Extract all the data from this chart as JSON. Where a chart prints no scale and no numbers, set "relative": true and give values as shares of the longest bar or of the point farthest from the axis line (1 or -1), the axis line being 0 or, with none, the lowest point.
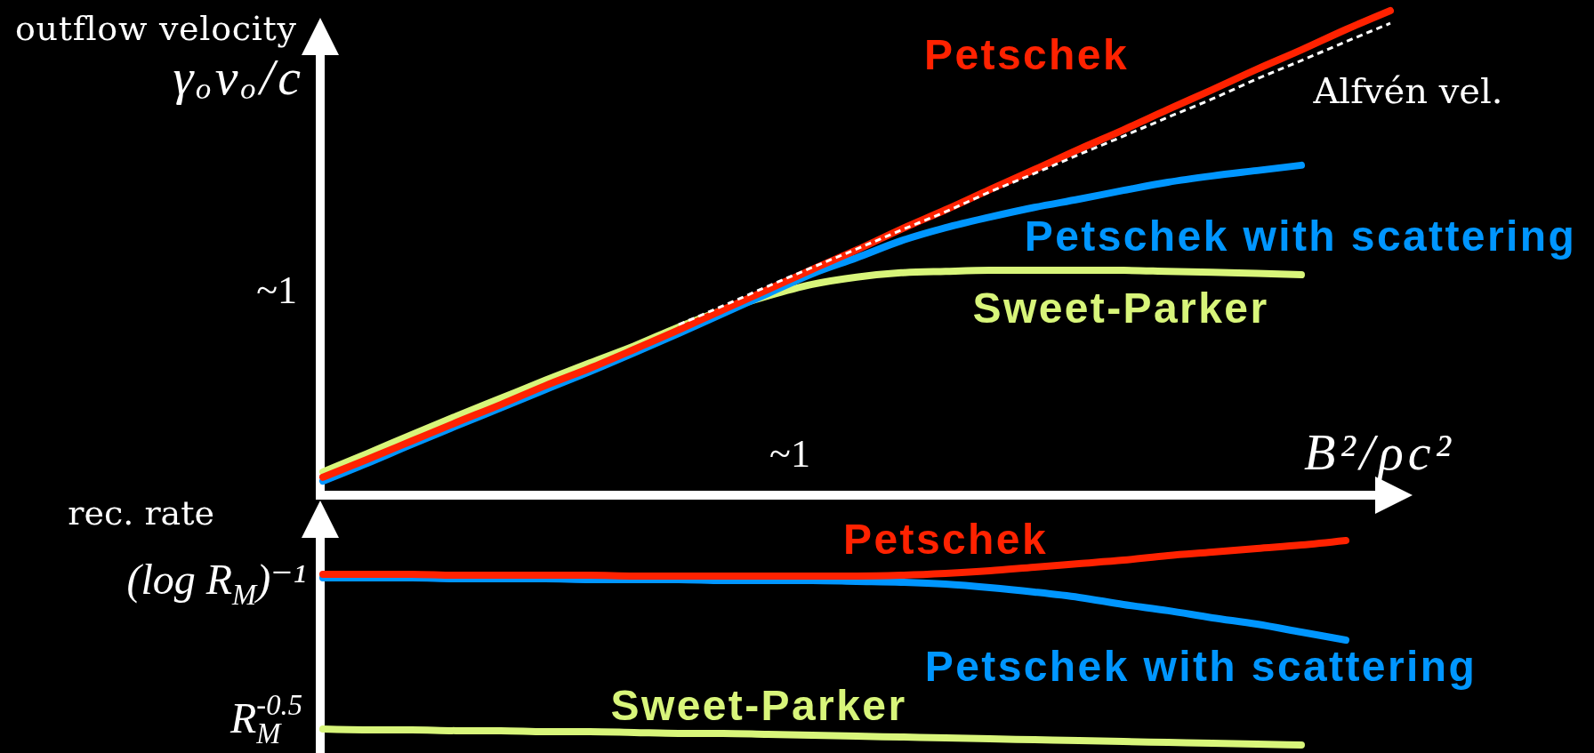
{
  "chart_data": [
    {
      "type": "line",
      "relative": true,
      "ylabel": "outflow velocity\nγₒvₒ/c",
      "xlabel": "B²/ρc²",
      "categories": [
        null,
        null,
        null,
        null,
        null,
        null,
        null,
        null,
        null,
        null,
        null,
        null,
        null,
        null,
        null,
        null,
        null,
        null,
        null,
        null,
        null,
        null,
        null,
        null,
        null
      ],
      "series": [
        {
          "name": "Sweet-Parker",
          "color": "#d8f57a",
          "values": [
            0.048,
            0.086,
            0.125,
            0.163,
            0.2,
            0.237,
            0.273,
            0.308,
            0.347,
            0.382,
            0.411,
            0.435,
            0.45,
            0.459,
            0.462,
            0.464,
            0.464,
            0.464,
            0.464,
            0.462,
            0.46,
            0.458,
            0.455,
            null,
            null
          ]
        },
        {
          "name": "Petschek with scattering",
          "color": "#0096ff",
          "values": [
            0.029,
            0.066,
            0.105,
            0.143,
            0.18,
            0.218,
            0.255,
            0.294,
            0.334,
            0.375,
            0.416,
            0.457,
            0.49,
            0.525,
            0.552,
            0.574,
            0.594,
            0.611,
            0.629,
            0.646,
            0.659,
            0.67,
            0.681,
            null,
            null
          ]
        },
        {
          "name": "Petschek",
          "color": "#ff2200",
          "values": [
            0.037,
            0.074,
            0.112,
            0.15,
            0.187,
            0.226,
            0.262,
            0.301,
            0.341,
            0.383,
            0.424,
            0.466,
            0.506,
            0.549,
            0.589,
            0.631,
            0.672,
            0.714,
            0.754,
            0.796,
            0.837,
            0.879,
            0.919,
            0.961,
            1
          ]
        },
        {
          "name": "Alfvén vel.",
          "color": "#ffffff",
          "line_style": "dashed",
          "values": [
            null,
            null,
            null,
            null,
            null,
            null,
            null,
            null,
            0.352,
            0.391,
            0.431,
            0.47,
            0.508,
            0.547,
            0.585,
            0.626,
            0.664,
            0.703,
            0.741,
            0.78,
            0.818,
            0.859,
            0.897,
            0.936,
            0.974
          ]
        }
      ],
      "annotations": [
        "~1",
        "~1"
      ]
    },
    {
      "type": "line",
      "relative": true,
      "ylabel": "rec. rate",
      "categories": [
        null,
        null,
        null,
        null,
        null,
        null,
        null,
        null,
        null,
        null,
        null,
        null,
        null,
        null,
        null,
        null,
        null,
        null,
        null,
        null,
        null,
        null,
        null,
        null,
        null
      ],
      "series": [
        {
          "name": "Sweet-Parker",
          "color": "#d8f57a",
          "values": [
            0.078,
            0.074,
            0.074,
            0.07,
            0.07,
            0.065,
            0.065,
            0.061,
            0.057,
            0.057,
            0.052,
            0.048,
            0.043,
            0.039,
            0.035,
            0.03,
            0.026,
            0.022,
            0.017,
            0.013,
            0.009,
            0.004,
            0,
            null,
            null
          ]
        },
        {
          "name": "Petschek with scattering",
          "color": "#0096ff",
          "values": [
            0.817,
            0.817,
            0.817,
            0.813,
            0.813,
            0.813,
            0.809,
            0.809,
            0.809,
            0.804,
            0.804,
            0.804,
            0.8,
            0.796,
            0.787,
            0.77,
            0.748,
            0.722,
            0.687,
            0.657,
            0.622,
            0.591,
            0.552,
            0.513,
            null
          ]
        },
        {
          "name": "Petschek",
          "color": "#ff2200",
          "values": [
            0.835,
            0.835,
            0.835,
            0.83,
            0.83,
            0.83,
            0.83,
            0.826,
            0.826,
            0.826,
            0.826,
            0.826,
            0.826,
            0.83,
            0.839,
            0.852,
            0.87,
            0.887,
            0.904,
            0.926,
            0.943,
            0.961,
            0.978,
            1,
            null
          ]
        }
      ],
      "annotations": [
        "(log R$_{M}$)⁻¹",
        "R$_{M}$$^{-0.5}$"
      ]
    }
  ]
}
